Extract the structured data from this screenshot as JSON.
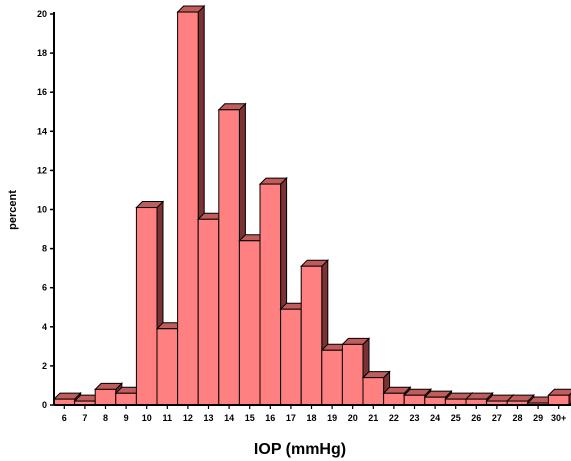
{
  "chart_data": {
    "type": "bar",
    "title": "",
    "xlabel": "IOP (mmHg)",
    "ylabel": "percent",
    "ylim": [
      0,
      20
    ],
    "yticks": [
      0,
      2,
      4,
      6,
      8,
      10,
      12,
      14,
      16,
      18,
      20
    ],
    "categories": [
      "6",
      "7",
      "8",
      "9",
      "10",
      "11",
      "12",
      "13",
      "14",
      "15",
      "16",
      "17",
      "18",
      "19",
      "20",
      "21",
      "22",
      "23",
      "24",
      "25",
      "26",
      "27",
      "28",
      "29",
      "30+"
    ],
    "values": [
      0.3,
      0.2,
      0.8,
      0.6,
      10.1,
      3.9,
      20.1,
      9.5,
      15.1,
      8.4,
      11.3,
      4.9,
      7.1,
      2.8,
      3.1,
      1.4,
      0.6,
      0.5,
      0.4,
      0.3,
      0.3,
      0.2,
      0.2,
      0.1,
      0.5
    ],
    "bar_style": "3d",
    "grid": false,
    "legend": "none",
    "colors": {
      "bar_front": "#ff8080",
      "bar_top": "#c05c5c",
      "bar_side": "#7a3232",
      "outline": "#000000"
    }
  }
}
